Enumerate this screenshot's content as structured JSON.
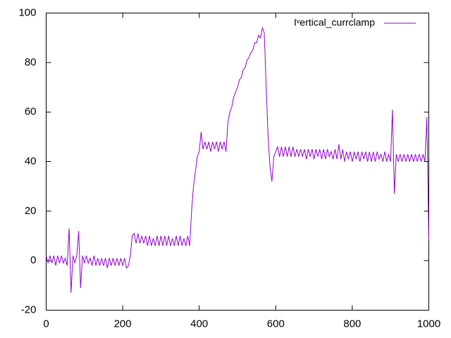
{
  "chart_data": {
    "type": "line",
    "x": [
      0,
      5,
      10,
      15,
      20,
      25,
      30,
      35,
      40,
      45,
      50,
      55,
      60,
      65,
      70,
      75,
      80,
      85,
      90,
      95,
      100,
      105,
      110,
      115,
      120,
      125,
      130,
      135,
      140,
      145,
      150,
      155,
      160,
      165,
      170,
      175,
      180,
      185,
      190,
      195,
      200,
      205,
      210,
      215,
      220,
      225,
      230,
      235,
      240,
      245,
      250,
      255,
      260,
      265,
      270,
      275,
      280,
      285,
      290,
      295,
      300,
      305,
      310,
      315,
      320,
      325,
      330,
      335,
      340,
      345,
      350,
      355,
      360,
      365,
      370,
      375,
      380,
      385,
      390,
      395,
      400,
      405,
      410,
      415,
      420,
      425,
      430,
      435,
      440,
      445,
      450,
      455,
      460,
      465,
      470,
      475,
      480,
      485,
      490,
      495,
      500,
      505,
      510,
      515,
      520,
      525,
      530,
      535,
      540,
      545,
      550,
      555,
      560,
      565,
      570,
      575,
      580,
      585,
      590,
      595,
      600,
      605,
      610,
      615,
      620,
      625,
      630,
      635,
      640,
      645,
      650,
      655,
      660,
      665,
      670,
      675,
      680,
      685,
      690,
      695,
      700,
      705,
      710,
      715,
      720,
      725,
      730,
      735,
      740,
      745,
      750,
      755,
      760,
      765,
      770,
      775,
      780,
      785,
      790,
      795,
      800,
      805,
      810,
      815,
      820,
      825,
      830,
      835,
      840,
      845,
      850,
      855,
      860,
      865,
      870,
      875,
      880,
      885,
      890,
      895,
      900,
      905,
      910,
      915,
      920,
      925,
      930,
      935,
      940,
      945,
      950,
      955,
      960,
      965,
      970,
      975,
      980,
      985,
      990,
      995,
      1000
    ],
    "series": [
      {
        "name": "Iᵛertical_currclamp",
        "color": "#9400d3",
        "values": [
          2,
          -1,
          2,
          -1,
          2,
          -2,
          2,
          -1,
          2,
          -1,
          1,
          -2,
          13,
          -13,
          2,
          -1,
          2,
          12,
          -11,
          2,
          -1,
          2,
          -1,
          1,
          -2,
          2,
          -2,
          1,
          -2,
          1,
          -2,
          1,
          -3,
          1,
          -2,
          1,
          -2,
          1,
          -2,
          1,
          -2,
          1,
          -3,
          -2,
          2,
          10,
          11,
          7,
          11,
          7,
          10,
          7,
          10,
          6,
          10,
          6,
          9,
          6,
          10,
          6,
          10,
          6,
          10,
          6,
          10,
          6,
          9,
          6,
          10,
          6,
          10,
          6,
          9,
          6,
          10,
          6,
          20,
          30,
          36,
          42,
          44,
          52,
          45,
          48,
          45,
          48,
          44,
          48,
          45,
          48,
          44,
          48,
          45,
          48,
          44,
          56,
          60,
          62,
          66,
          68,
          70,
          73,
          74,
          77,
          78,
          81,
          82,
          84,
          85,
          88,
          88,
          91,
          90,
          94,
          92,
          70,
          50,
          38,
          32,
          42,
          44,
          46,
          42,
          46,
          42,
          46,
          42,
          46,
          42,
          46,
          42,
          45,
          42,
          45,
          42,
          45,
          41,
          45,
          42,
          45,
          41,
          45,
          42,
          45,
          41,
          45,
          41,
          45,
          42,
          44,
          41,
          45,
          41,
          47,
          41,
          45,
          40,
          44,
          41,
          44,
          40,
          44,
          41,
          44,
          40,
          44,
          41,
          44,
          40,
          44,
          40,
          44,
          40,
          44,
          41,
          43,
          40,
          44,
          40,
          43,
          40,
          61,
          27,
          43,
          40,
          43,
          40,
          43,
          40,
          43,
          40,
          43,
          40,
          43,
          40,
          43,
          40,
          43,
          40,
          58,
          8
        ]
      }
    ],
    "xlim": [
      0,
      1000
    ],
    "ylim": [
      -20,
      100
    ],
    "xticks": [
      0,
      200,
      400,
      600,
      800,
      1000
    ],
    "yticks": [
      -20,
      0,
      20,
      40,
      60,
      80,
      100
    ],
    "legend": "top-right"
  }
}
